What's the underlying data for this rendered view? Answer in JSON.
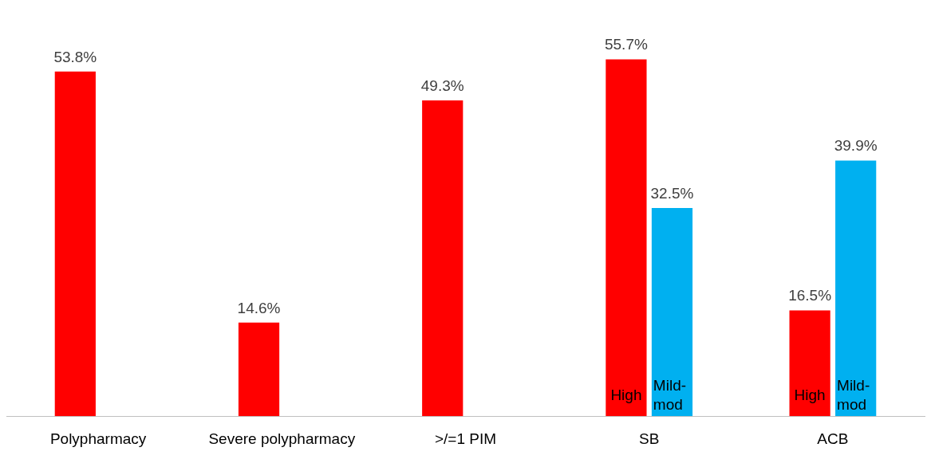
{
  "chart_data": {
    "type": "bar",
    "categories": [
      "Polypharmacy",
      "Severe polypharmacy",
      ">/=1 PIM",
      "SB",
      "ACB"
    ],
    "series": [
      {
        "name": "High",
        "color": "#ff0000",
        "values": [
          53.8,
          14.6,
          49.3,
          55.7,
          16.5
        ],
        "value_labels": [
          "53.8%",
          "14.6%",
          "49.3%",
          "55.7%",
          "16.5%"
        ]
      },
      {
        "name": "Mild-mod",
        "color": "#00b0f0",
        "values": [
          null,
          null,
          null,
          32.5,
          39.9
        ],
        "value_labels": [
          null,
          null,
          null,
          "32.5%",
          "39.9%"
        ]
      }
    ],
    "grid": false,
    "legend": false,
    "tick_labels": "x"
  }
}
